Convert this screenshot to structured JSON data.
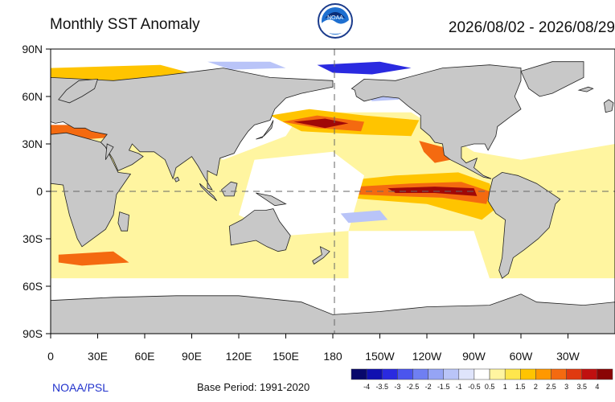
{
  "header": {
    "title": "Monthly SST Anomaly",
    "date_range": "2026/08/02 - 2026/08/29",
    "logo_text": "NOAA"
  },
  "footer": {
    "credit": "NOAA/PSL",
    "base_period": "Base Period: 1991-2020"
  },
  "map": {
    "projection": "equirectangular",
    "central_longitude": 180,
    "lat_range": [
      -90,
      90
    ],
    "dashed_reference_lines": [
      "equator",
      "180"
    ],
    "land_color": "#c8c8c8",
    "ocean_neutral_color": "#ffffff",
    "y_ticks": [
      {
        "label": "90N",
        "lat": 90
      },
      {
        "label": "60N",
        "lat": 60
      },
      {
        "label": "30N",
        "lat": 30
      },
      {
        "label": "0",
        "lat": 0
      },
      {
        "label": "30S",
        "lat": -30
      },
      {
        "label": "60S",
        "lat": -60
      },
      {
        "label": "90S",
        "lat": -90
      }
    ],
    "x_ticks": [
      {
        "label": "0",
        "lon": 0
      },
      {
        "label": "30E",
        "lon": 30
      },
      {
        "label": "60E",
        "lon": 60
      },
      {
        "label": "90E",
        "lon": 90
      },
      {
        "label": "120E",
        "lon": 120
      },
      {
        "label": "150E",
        "lon": 150
      },
      {
        "label": "180",
        "lon": 180
      },
      {
        "label": "150W",
        "lon": 210
      },
      {
        "label": "120W",
        "lon": 240
      },
      {
        "label": "90W",
        "lon": 270
      },
      {
        "label": "60W",
        "lon": 300
      },
      {
        "label": "30W",
        "lon": 330
      }
    ]
  },
  "colorbar": {
    "labels": [
      "-4",
      "-3.5",
      "-3",
      "-2.5",
      "-2",
      "-1.5",
      "-1",
      "-0.5",
      "0.5",
      "1",
      "1.5",
      "2",
      "2.5",
      "3",
      "3.5",
      "4"
    ],
    "colors": [
      "#08086b",
      "#1010b0",
      "#2a2ae0",
      "#4b55ee",
      "#6f7ff2",
      "#95a4f5",
      "#b9c4f8",
      "#dfe4fb",
      "#ffffff",
      "#fff5a0",
      "#ffe64d",
      "#ffc400",
      "#ff9800",
      "#f46a10",
      "#e03a10",
      "#c01010",
      "#8a0404"
    ]
  },
  "anomaly_palette": {
    "cold_strong": "#2a2ae0",
    "cold_weak": "#b9c4f8",
    "warm_weak": "#fff5a0",
    "warm_mid": "#ffc400",
    "warm_strong": "#f46a10",
    "warm_extreme": "#a00808"
  }
}
